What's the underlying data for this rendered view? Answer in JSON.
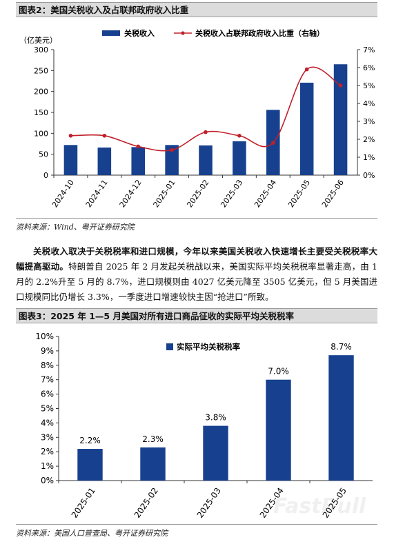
{
  "colors": {
    "bar": "#17418f",
    "line": "#c0202a"
  },
  "fig2": {
    "caption": "图表2：美国关税收入及占联邦政府收入比重",
    "unit": "（亿美元）",
    "legend_bar": "关税收入",
    "legend_line": "关税收入占联邦政府收入比重（右轴）",
    "source": "资料来源：Wind、粤开证券研究院"
  },
  "para": {
    "lead": "关税收入取决于关税税率和进口规模，今年以来美国关税收入快速增长主要受关税税率大幅提高驱动。",
    "rest": "特朗普自 2025 年 2 月发起关税战以来，美国实际平均关税税率显著走高，由 1 月的 2.2%升至 5 月的 8.7%，进口规模则由 4027 亿美元降至 3505 亿美元，但 5 月美国进口规模同比仍增长 3.3%，一季度进口增速较快主因“抢进口”所致。"
  },
  "fig3": {
    "caption": "图表3：2025 年 1—5 月美国对所有进口商品征收的实际平均关税税率",
    "legend": "实际平均关税税率",
    "source": "资料来源：美国人口普查局、粤开证券研究院"
  },
  "watermark": "FastBull",
  "chart_data": [
    {
      "type": "bar",
      "categories": [
        "2024-10",
        "2024-11",
        "2024-12",
        "2025-01",
        "2025-02",
        "2025-03",
        "2025-04",
        "2025-05",
        "2025-06"
      ],
      "series": [
        {
          "name": "关税收入",
          "type": "bar",
          "axis": "left",
          "values": [
            72,
            66,
            67,
            72,
            71,
            81,
            156,
            221,
            265
          ]
        },
        {
          "name": "关税收入占联邦政府收入比重（右轴）",
          "type": "line",
          "axis": "right",
          "values": [
            2.2,
            2.2,
            1.6,
            1.4,
            2.4,
            2.2,
            1.8,
            5.9,
            5.0
          ]
        }
      ],
      "ylim": [
        0,
        300
      ],
      "yticks": [
        0,
        50,
        100,
        150,
        200,
        250,
        300
      ],
      "y2lim": [
        0,
        7
      ],
      "y2ticks": [
        "0%",
        "1%",
        "2%",
        "3%",
        "4%",
        "5%",
        "6%",
        "7%"
      ],
      "ylabel": "（亿美元）",
      "legend": "top"
    },
    {
      "type": "bar",
      "categories": [
        "2025-01",
        "2025-02",
        "2025-03",
        "2025-04",
        "2025-05"
      ],
      "series": [
        {
          "name": "实际平均关税税率",
          "values": [
            2.2,
            2.3,
            3.8,
            7.0,
            8.7
          ]
        }
      ],
      "data_labels": [
        "2.2%",
        "2.3%",
        "3.8%",
        "7.0%",
        "8.7%"
      ],
      "ylim": [
        0,
        10
      ],
      "yticks": [
        "0%",
        "1%",
        "2%",
        "3%",
        "4%",
        "5%",
        "6%",
        "7%",
        "8%",
        "9%",
        "10%"
      ],
      "legend": "top-center"
    }
  ]
}
